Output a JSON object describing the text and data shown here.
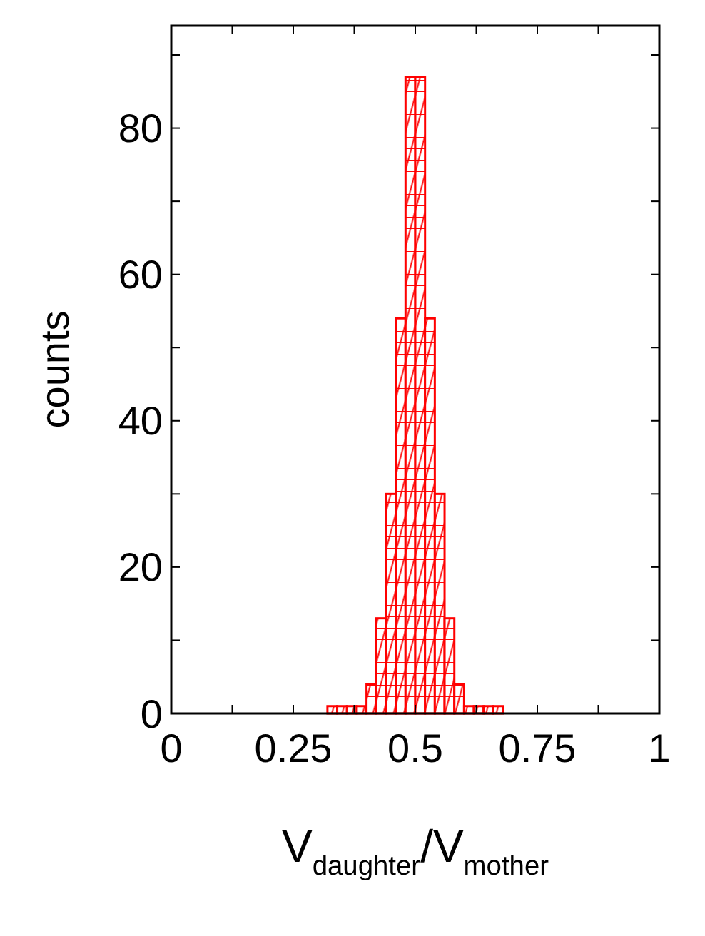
{
  "chart_data": {
    "type": "histogram",
    "xlabel": "V$_{daughter}$/V$_{mother}$",
    "ylabel": "counts",
    "bins": [
      0.32,
      0.34,
      0.36,
      0.38,
      0.4,
      0.42,
      0.44,
      0.46,
      0.48,
      0.5,
      0.52,
      0.54,
      0.56,
      0.58,
      0.6,
      0.62,
      0.64,
      0.66,
      0.68
    ],
    "values": [
      1,
      1,
      1,
      1,
      4,
      13,
      30,
      54,
      87,
      87,
      54,
      30,
      13,
      4,
      1,
      1,
      1,
      1
    ],
    "color": "#ff0000",
    "xlim": [
      0,
      1
    ],
    "xticks": [
      0,
      {
        "value": 0.125,
        "label": null
      },
      0.25,
      {
        "value": 0.375,
        "label": null
      },
      0.5,
      {
        "value": 0.625,
        "label": null
      },
      0.75,
      {
        "value": 0.875,
        "label": null
      },
      1
    ],
    "ylim": [
      0,
      94
    ],
    "yticks": [
      0,
      {
        "value": 10,
        "label": null
      },
      20,
      {
        "value": 30,
        "label": null
      },
      40,
      {
        "value": 50,
        "label": null
      },
      60,
      {
        "value": 70,
        "label": null
      },
      80,
      {
        "value": 90,
        "label": null
      }
    ],
    "grid": false
  }
}
